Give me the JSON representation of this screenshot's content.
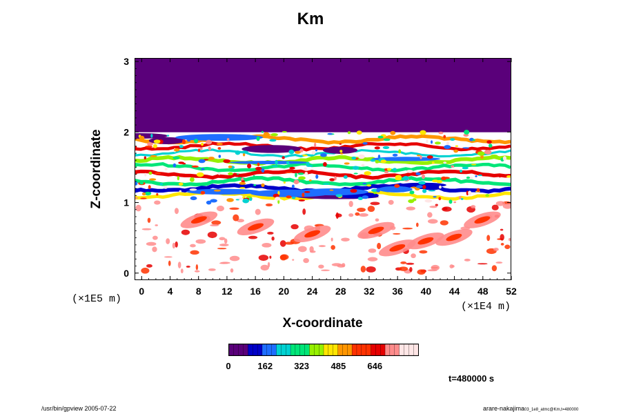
{
  "chart_data": {
    "type": "heatmap",
    "title": "Km",
    "xlabel": "X-coordinate",
    "ylabel": "Z-coordinate",
    "x_scale_label": "(×1E4 m)",
    "y_scale_label": "(×1E5 m)",
    "x_ticks": [
      "0",
      "4",
      "8",
      "12",
      "16",
      "20",
      "24",
      "28",
      "32",
      "36",
      "40",
      "44",
      "48",
      "52"
    ],
    "y_ticks": [
      "0",
      "1",
      "2",
      "3"
    ],
    "xlim": [
      -1,
      52
    ],
    "ylim": [
      -0.1,
      3.05
    ],
    "colorbar": {
      "ticks": [
        "0",
        "162",
        "323",
        "485",
        "646"
      ],
      "range": [
        0,
        840
      ],
      "colors": [
        "#5a007a",
        "#0000c8",
        "#1e6eff",
        "#00d2d2",
        "#00e678",
        "#96f000",
        "#ffe600",
        "#ff9600",
        "#ff3200",
        "#e60000",
        "#ff8c8c",
        "#ffe6e6"
      ]
    },
    "regions": {
      "upper_uniform_value": 0,
      "upper_uniform_zmin": 2.0,
      "turbulent_band_z": [
        1.05,
        1.95
      ],
      "lower_patchy_z": [
        0.0,
        1.0
      ]
    },
    "time_label": "t=480000 s"
  },
  "footer": {
    "left": "/usr/bin/gpview 2005-07-22",
    "right_main": "arare-nakajima",
    "right_sub": "03_1e8_atmc@Km,t=480000"
  }
}
